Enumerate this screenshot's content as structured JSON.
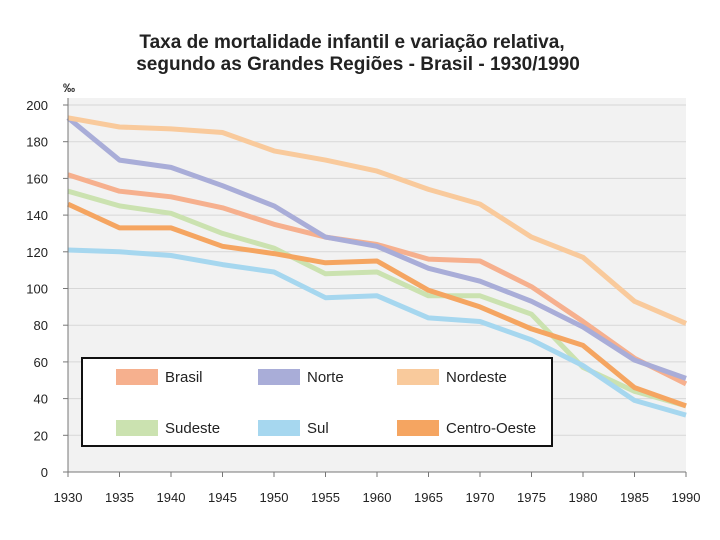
{
  "chart_data": {
    "type": "line",
    "title_line1": "Taxa de mortalidade infantil e variação relativa,",
    "title_line2": "segundo as Grandes Regiões - Brasil - 1930/1990",
    "ylabel": "‰",
    "xlabel": "",
    "grid": true,
    "legend_position": "bottom-left (inside plot)",
    "x": [
      1930,
      1935,
      1940,
      1945,
      1950,
      1955,
      1960,
      1965,
      1970,
      1975,
      1980,
      1985,
      1990
    ],
    "xlim": [
      1930,
      1990
    ],
    "ylim": [
      0,
      200
    ],
    "yticks": [
      0,
      20,
      40,
      60,
      80,
      100,
      120,
      140,
      160,
      180,
      200
    ],
    "series": [
      {
        "name": "Brasil",
        "color": "#F6B08E",
        "values": [
          162,
          153,
          150,
          144,
          135,
          128,
          124,
          116,
          115,
          101,
          82,
          62,
          48
        ]
      },
      {
        "name": "Norte",
        "color": "#A9ADD8",
        "values": [
          193,
          170,
          166,
          156,
          145,
          128,
          123,
          111,
          104,
          93,
          79,
          61,
          51
        ]
      },
      {
        "name": "Nordeste",
        "color": "#F9CA9C",
        "values": [
          193,
          188,
          187,
          185,
          175,
          170,
          164,
          154,
          146,
          128,
          117,
          93,
          81
        ]
      },
      {
        "name": "Sudeste",
        "color": "#CBE2B0",
        "values": [
          153,
          145,
          141,
          130,
          122,
          108,
          109,
          96,
          96,
          86,
          57,
          44,
          36
        ]
      },
      {
        "name": "Sul",
        "color": "#A6D7EF",
        "values": [
          121,
          120,
          118,
          113,
          109,
          95,
          96,
          84,
          82,
          72,
          58,
          39,
          31
        ]
      },
      {
        "name": "Centro-Oeste",
        "color": "#F5A561",
        "values": [
          146,
          133,
          133,
          123,
          119,
          114,
          115,
          99,
          90,
          78,
          69,
          46,
          36
        ]
      }
    ]
  }
}
